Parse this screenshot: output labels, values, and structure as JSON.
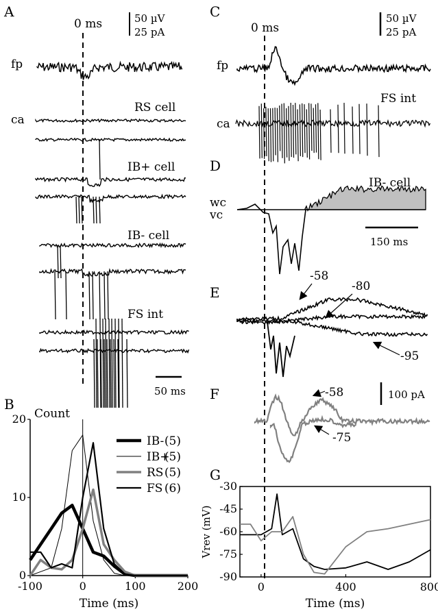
{
  "panels": {
    "A": {
      "letter": "A",
      "onset_label": "0 ms",
      "scale_v": "50 µV",
      "scale_i": "25 pA",
      "fp_label": "fp",
      "ca_label": "ca",
      "rs_label": "RS cell",
      "ibp_label": "IB+ cell",
      "ibm_label": "IB- cell",
      "fs_label": "FS int",
      "time_scale": "50 ms"
    },
    "B": {
      "letter": "B"
    },
    "C": {
      "letter": "C",
      "onset_label": "0 ms",
      "scale_v": "50 µV",
      "scale_i": "25 pA",
      "fp_label": "fp",
      "ca_label": "ca",
      "fs_label": "FS int"
    },
    "D": {
      "letter": "D",
      "cell_label": "IB- cell",
      "wc_label": "wc",
      "vc_label": "vc",
      "time_scale": "150 ms"
    },
    "E": {
      "letter": "E",
      "v1": "-58",
      "v2": "-80",
      "v3": "-95"
    },
    "F": {
      "letter": "F",
      "v1": "-58",
      "v2": "-75",
      "scale": "100 pA"
    },
    "G": {
      "letter": "G"
    }
  },
  "chart_data": [
    {
      "id": "B",
      "type": "line",
      "title": "Count",
      "xlabel": "Time (ms)",
      "ylabel": "",
      "xlim": [
        -100,
        200
      ],
      "ylim": [
        0,
        20
      ],
      "xticks": [
        "-100",
        "0",
        "100",
        "200"
      ],
      "yticks": [
        "0",
        "10",
        "20"
      ],
      "x": [
        -100,
        -80,
        -60,
        -40,
        -20,
        0,
        20,
        40,
        60,
        80,
        100,
        150,
        200
      ],
      "legend_position": "right",
      "series": [
        {
          "name": "IB-",
          "n": "(5)",
          "color": "#000000",
          "width": 4.5,
          "values": [
            2,
            4,
            6,
            8,
            9,
            6,
            3,
            2.5,
            1.2,
            0.2,
            0,
            0,
            0
          ]
        },
        {
          "name": "IB+",
          "n": "(5)",
          "color": "#000000",
          "width": 1,
          "values": [
            0,
            0.5,
            1,
            6,
            16,
            18,
            7,
            2,
            0.3,
            0,
            0,
            0,
            0
          ]
        },
        {
          "name": "RS",
          "n": "(5)",
          "color": "#808080",
          "width": 3.5,
          "values": [
            0,
            2,
            1,
            0.8,
            2,
            6,
            11,
            4,
            2,
            0.5,
            0,
            0,
            0
          ]
        },
        {
          "name": "FS",
          "n": "(6)",
          "color": "#000000",
          "width": 2.2,
          "values": [
            3,
            3,
            1,
            1.5,
            1,
            10,
            17,
            6,
            1.5,
            0.2,
            0,
            0,
            0
          ]
        }
      ]
    },
    {
      "id": "G",
      "type": "line",
      "xlabel": "Time (ms)",
      "ylabel": "Vrev (mV)",
      "xlim": [
        -100,
        800
      ],
      "ylim": [
        -90,
        -30
      ],
      "xticks": [
        "0",
        "400",
        "800"
      ],
      "yticks": [
        "-30",
        "-45",
        "-60",
        "-75",
        "-90"
      ],
      "x": [
        -100,
        -50,
        0,
        50,
        75,
        100,
        150,
        200,
        250,
        300,
        400,
        500,
        600,
        700,
        800
      ],
      "series": [
        {
          "name": "",
          "color": "#000000",
          "values": [
            -62,
            -62,
            -62,
            -58,
            -35,
            -62,
            -58,
            -78,
            -83,
            -85,
            -84,
            -80,
            -85,
            -80,
            -72
          ]
        },
        {
          "name": "",
          "color": "#808080",
          "values": [
            -55,
            -55,
            -66,
            -60,
            -60,
            -60,
            -50,
            -75,
            -87,
            -88,
            -70,
            -60,
            -58,
            -55,
            -52
          ]
        }
      ]
    }
  ]
}
